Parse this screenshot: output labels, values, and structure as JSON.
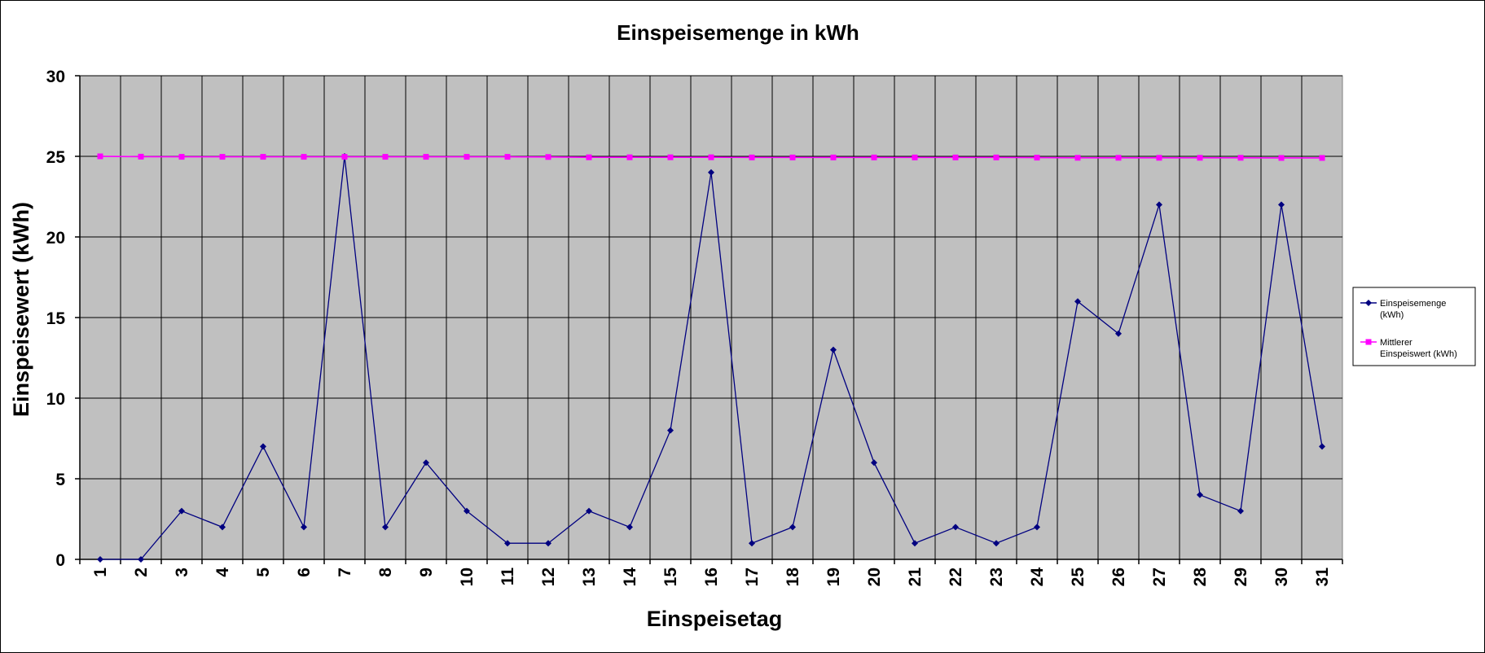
{
  "chart_data": {
    "type": "line",
    "title": "Einspeisemenge in kWh",
    "xlabel": "Einspeisetag",
    "ylabel": "Einspeisewert  (kWh)",
    "categories": [
      "1",
      "2",
      "3",
      "4",
      "5",
      "6",
      "7",
      "8",
      "9",
      "10",
      "11",
      "12",
      "13",
      "14",
      "15",
      "16",
      "17",
      "18",
      "19",
      "20",
      "21",
      "22",
      "23",
      "24",
      "25",
      "26",
      "27",
      "28",
      "29",
      "30",
      "31"
    ],
    "ylim": [
      0,
      30
    ],
    "yticks": [
      "0",
      "5",
      "10",
      "15",
      "20",
      "25",
      "30"
    ],
    "grid": true,
    "legend_position": "right",
    "series": [
      {
        "name": "Einspeisemenge (kWh)",
        "legend_lines": [
          "Einspeisemenge",
          "(kWh)"
        ],
        "color": "#000080",
        "marker": "diamond",
        "values": [
          0,
          0,
          3,
          2,
          7,
          2,
          25,
          2,
          6,
          3,
          1,
          1,
          3,
          2,
          8,
          24,
          1,
          2,
          13,
          6,
          1,
          2,
          1,
          2,
          16,
          14,
          22,
          4,
          3,
          22,
          7
        ]
      },
      {
        "name": "Mittlerer Einspeiswert (kWh)",
        "legend_lines": [
          "Mittlerer",
          "Einspeiswert (kWh)"
        ],
        "color": "#ff00ff",
        "marker": "square",
        "values": [
          25,
          24.98,
          24.97,
          24.97,
          24.97,
          24.97,
          24.97,
          24.97,
          24.97,
          24.97,
          24.97,
          24.96,
          24.94,
          24.94,
          24.94,
          24.94,
          24.93,
          24.93,
          24.93,
          24.93,
          24.93,
          24.93,
          24.93,
          24.92,
          24.91,
          24.91,
          24.91,
          24.91,
          24.91,
          24.9,
          24.9
        ]
      }
    ],
    "plot_background": "#c0c0c0"
  }
}
